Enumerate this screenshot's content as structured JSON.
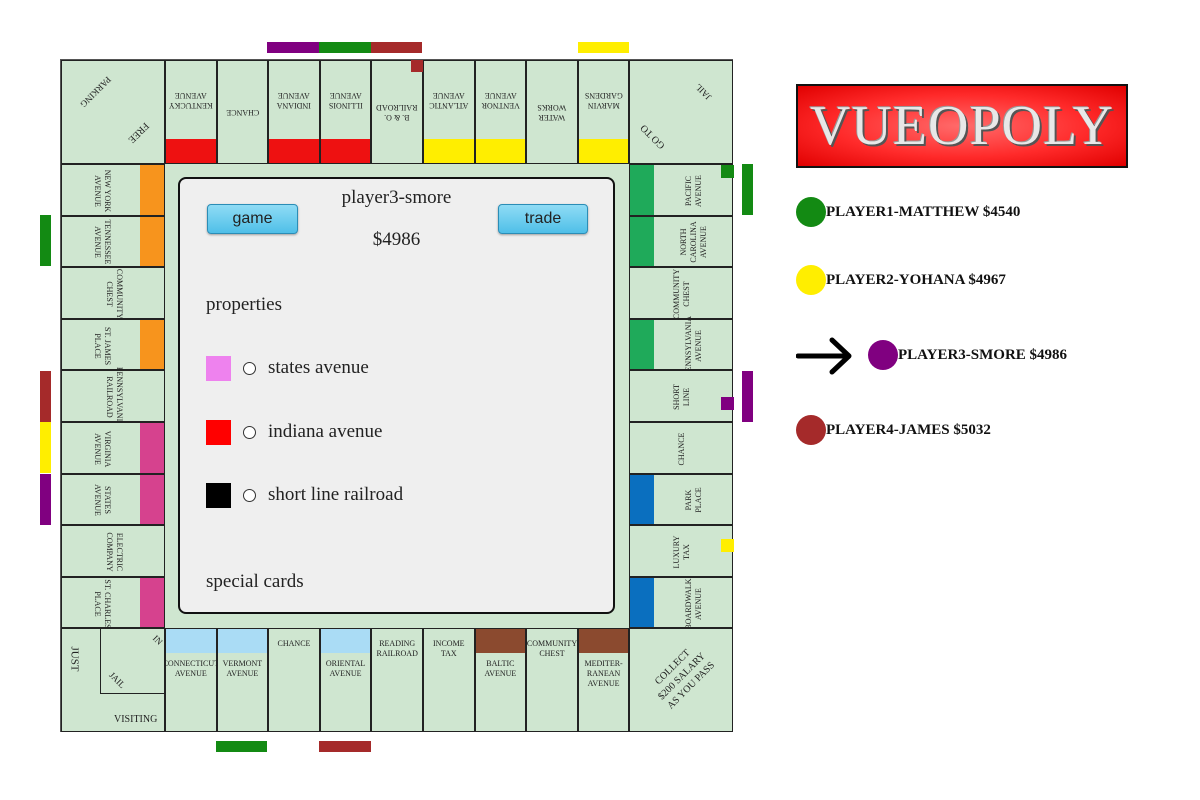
{
  "board": {
    "corners": {
      "top_left": [
        "PARKING",
        "FREE"
      ],
      "top_right": [
        "JAIL",
        "GO TO"
      ],
      "bottom_left": [
        "JUST",
        "IN",
        "JAIL",
        "VISITING"
      ],
      "bottom_right": "COLLECT\n$200 SALARY\nAS YOU PASS"
    },
    "top": [
      {
        "name": "KENTUCKY\nAVENUE",
        "color": "#ee1111"
      },
      {
        "name": "CHANCE",
        "color": null
      },
      {
        "name": "INDIANA\nAVENUE",
        "color": "#ee1111"
      },
      {
        "name": "ILLINOIS\nAVENUE",
        "color": "#ee1111"
      },
      {
        "name": "B. & O.\nRAILROAD",
        "color": null
      },
      {
        "name": "ATLANTIC\nAVENUE",
        "color": "#ffee00"
      },
      {
        "name": "VENTNOR\nAVENUE",
        "color": "#ffee00"
      },
      {
        "name": "WATER\nWORKS",
        "color": null
      },
      {
        "name": "MARVIN\nGARDENS",
        "color": "#ffee00"
      }
    ],
    "right": [
      {
        "name": "PACIFIC\nAVENUE",
        "color": "#1faa5a"
      },
      {
        "name": "NORTH\nCAROLINA\nAVENUE",
        "color": "#1faa5a"
      },
      {
        "name": "COMMUNITY\nCHEST",
        "color": null
      },
      {
        "name": "PENNSYLVANIA\nAVENUE",
        "color": "#1faa5a"
      },
      {
        "name": "SHORT\nLINE",
        "color": null
      },
      {
        "name": "CHANCE",
        "color": null
      },
      {
        "name": "PARK\nPLACE",
        "color": "#0a6fbf"
      },
      {
        "name": "LUXURY\nTAX",
        "color": null
      },
      {
        "name": "BOARDWALK\nAVENUE",
        "color": "#0a6fbf"
      }
    ],
    "bottom": [
      {
        "name": "CONNECTICUT\nAVENUE",
        "color": "#aadcf5"
      },
      {
        "name": "VERMONT\nAVENUE",
        "color": "#aadcf5"
      },
      {
        "name": "CHANCE",
        "color": null
      },
      {
        "name": "ORIENTAL\nAVENUE",
        "color": "#aadcf5"
      },
      {
        "name": "READING\nRAILROAD",
        "color": null
      },
      {
        "name": "INCOME\nTAX",
        "color": null
      },
      {
        "name": "BALTIC\nAVENUE",
        "color": "#8b4a2f"
      },
      {
        "name": "COMMUNITY\nCHEST",
        "color": null
      },
      {
        "name": "MEDITER-\nRANEAN\nAVENUE",
        "color": "#8b4a2f"
      }
    ],
    "left": [
      {
        "name": "NEW YORK\nAVENUE",
        "color": "#f7941d"
      },
      {
        "name": "TENNESSEE\nAVENUE",
        "color": "#f7941d"
      },
      {
        "name": "COMMUNITY\nCHEST",
        "color": null
      },
      {
        "name": "ST. JAMES\nPLACE",
        "color": "#f7941d"
      },
      {
        "name": "PENNSYLVANIA\nRAILROAD",
        "color": null
      },
      {
        "name": "VIRGINIA\nAVENUE",
        "color": "#d6428e"
      },
      {
        "name": "STATES\nAVENUE",
        "color": "#d6428e"
      },
      {
        "name": "ELECTRIC\nCOMPANY",
        "color": null
      },
      {
        "name": "ST. CHARLES\nPLACE",
        "color": "#d6428e"
      }
    ]
  },
  "panel": {
    "player_name": "player3-smore",
    "money": "$4986",
    "game_button": "game",
    "trade_button": "trade",
    "properties_heading": "properties",
    "properties": [
      {
        "name": "states avenue",
        "color": "#ee82ee"
      },
      {
        "name": "indiana avenue",
        "color": "#ff0000"
      },
      {
        "name": "short line railroad",
        "color": "#000000"
      }
    ],
    "special_cards_heading": "special cards"
  },
  "logo": "VUEOPOLY",
  "players": [
    {
      "label": "PLAYER1-MATTHEW $4540",
      "color": "#138a13",
      "current": false
    },
    {
      "label": "PLAYER2-YOHANA $4967",
      "color": "#ffee00",
      "current": false
    },
    {
      "label": "PLAYER3-SMORE $4986",
      "color": "#800080",
      "current": true
    },
    {
      "label": "PLAYER4-JAMES $5032",
      "color": "#a52a2a",
      "current": false
    }
  ],
  "colors": {
    "board_bg": "#cfe6d0",
    "owner_green": "#138a13",
    "owner_yellow": "#ffee00",
    "owner_purple": "#800080",
    "owner_brown": "#a52a2a"
  }
}
